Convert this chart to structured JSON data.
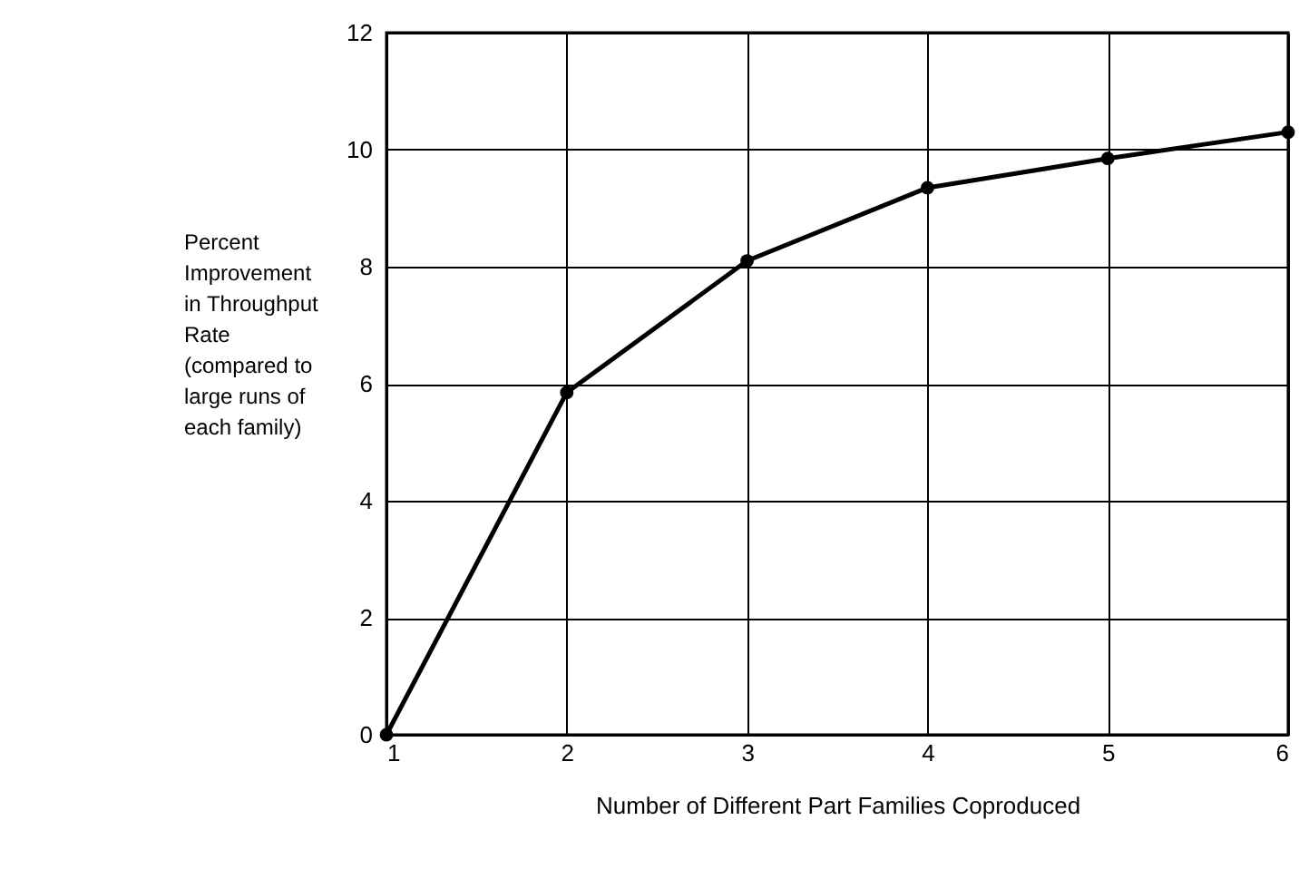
{
  "chart_data": {
    "type": "line",
    "xlabel": "Number of Different Part Families Coproduced",
    "ylabel": "Percent\nImprovement\nin Throughput\nRate\n(compared to\nlarge runs of\neach family)",
    "x": [
      1,
      2,
      3,
      4,
      5,
      6
    ],
    "series": [
      {
        "color": "#000000",
        "values": [
          0,
          5.85,
          8.1,
          9.35,
          9.85,
          10.3
        ]
      }
    ],
    "xlim": [
      1,
      6
    ],
    "xticks": [
      1,
      2,
      3,
      4,
      5,
      6
    ],
    "ylim": [
      0,
      12
    ],
    "yticks": [
      0,
      2,
      4,
      6,
      8,
      10,
      12
    ],
    "grid": true,
    "marker": "circle",
    "line_style": "solid"
  }
}
